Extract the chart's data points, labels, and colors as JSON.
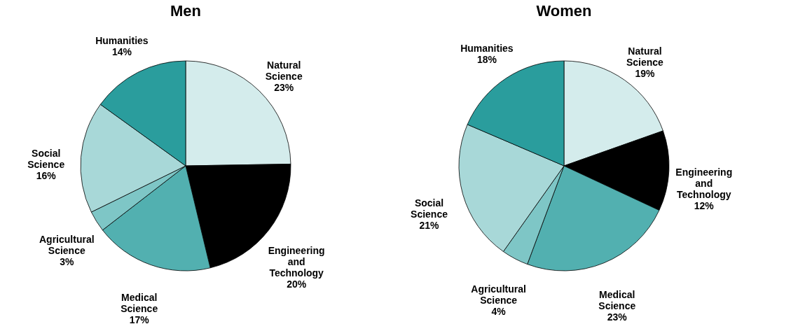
{
  "chart_data": [
    {
      "type": "pie",
      "title": "Men",
      "categories": [
        "Natural Science",
        "Engineering and Technology",
        "Medical Science",
        "Agricultural Science",
        "Social Science",
        "Humanities"
      ],
      "values": [
        23,
        20,
        17,
        3,
        16,
        14
      ],
      "colors": [
        "#d4ecec",
        "#000000",
        "#52b0b0",
        "#7ec6c6",
        "#a8d8d8",
        "#2a9d9d"
      ],
      "value_labels": [
        "23%",
        "20%",
        "17%",
        "3%",
        "16%",
        "14%"
      ]
    },
    {
      "type": "pie",
      "title": "Women",
      "categories": [
        "Natural Science",
        "Engineering and Technology",
        "Medical Science",
        "Agricultural Science",
        "Social Science",
        "Humanities"
      ],
      "values": [
        19,
        12,
        23,
        4,
        21,
        18
      ],
      "colors": [
        "#d4ecec",
        "#000000",
        "#52b0b0",
        "#7ec6c6",
        "#a8d8d8",
        "#2a9d9d"
      ],
      "value_labels": [
        "19%",
        "12%",
        "23%",
        "4%",
        "21%",
        "18%"
      ]
    }
  ]
}
